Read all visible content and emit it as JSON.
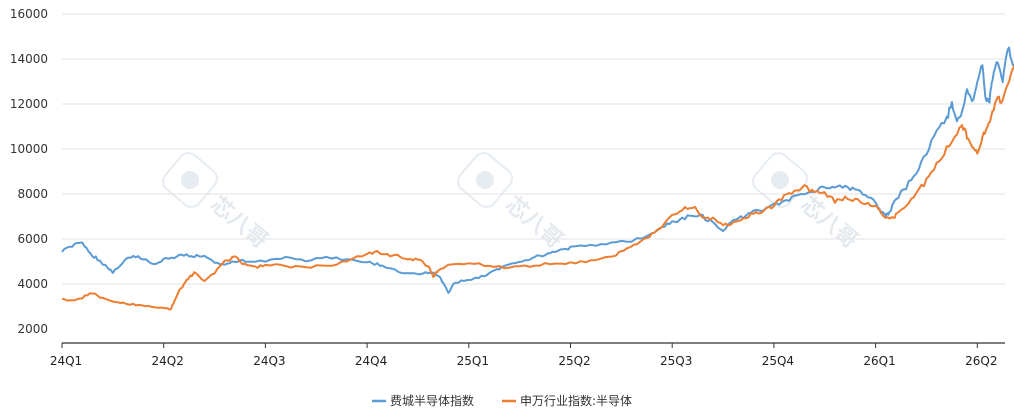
{
  "chart_data": {
    "type": "line",
    "title": "",
    "xlabel": "",
    "ylabel": "",
    "ylim": [
      2000,
      16000
    ],
    "yticks": [
      2000,
      4000,
      6000,
      8000,
      10000,
      12000,
      14000,
      16000
    ],
    "xticks": [
      "24Q1",
      "24Q2",
      "24Q3",
      "24Q4",
      "25Q1",
      "25Q2",
      "25Q3",
      "25Q4",
      "26Q1",
      "26Q2"
    ],
    "x_domain": [
      0,
      9.4
    ],
    "grid": "horizontal",
    "legend_position": "bottom-center",
    "series": [
      {
        "name": "费城半导体指数",
        "color": "#5b9bd5",
        "points": [
          [
            0.0,
            5500
          ],
          [
            0.1,
            5700
          ],
          [
            0.2,
            5800
          ],
          [
            0.28,
            5350
          ],
          [
            0.35,
            5100
          ],
          [
            0.45,
            4700
          ],
          [
            0.5,
            4500
          ],
          [
            0.6,
            5000
          ],
          [
            0.7,
            5250
          ],
          [
            0.8,
            5150
          ],
          [
            0.9,
            4900
          ],
          [
            1.0,
            5100
          ],
          [
            1.1,
            5200
          ],
          [
            1.2,
            5300
          ],
          [
            1.3,
            5250
          ],
          [
            1.4,
            5200
          ],
          [
            1.5,
            5000
          ],
          [
            1.6,
            4800
          ],
          [
            1.7,
            5000
          ],
          [
            1.8,
            5050
          ],
          [
            2.0,
            5000
          ],
          [
            2.2,
            5150
          ],
          [
            2.4,
            5000
          ],
          [
            2.6,
            5200
          ],
          [
            2.8,
            5100
          ],
          [
            3.0,
            4950
          ],
          [
            3.1,
            4900
          ],
          [
            3.2,
            4750
          ],
          [
            3.35,
            4500
          ],
          [
            3.5,
            4450
          ],
          [
            3.6,
            4500
          ],
          [
            3.7,
            4400
          ],
          [
            3.75,
            4050
          ],
          [
            3.8,
            3600
          ],
          [
            3.85,
            4000
          ],
          [
            3.95,
            4150
          ],
          [
            4.1,
            4250
          ],
          [
            4.2,
            4500
          ],
          [
            4.3,
            4700
          ],
          [
            4.4,
            4900
          ],
          [
            4.5,
            5000
          ],
          [
            4.6,
            5100
          ],
          [
            4.7,
            5250
          ],
          [
            4.8,
            5400
          ],
          [
            4.9,
            5500
          ],
          [
            5.0,
            5600
          ],
          [
            5.2,
            5700
          ],
          [
            5.4,
            5800
          ],
          [
            5.6,
            5900
          ],
          [
            5.8,
            6200
          ],
          [
            5.9,
            6500
          ],
          [
            6.0,
            6750
          ],
          [
            6.1,
            6900
          ],
          [
            6.2,
            7050
          ],
          [
            6.3,
            7000
          ],
          [
            6.4,
            6700
          ],
          [
            6.5,
            6400
          ],
          [
            6.6,
            6800
          ],
          [
            6.7,
            7000
          ],
          [
            6.8,
            7200
          ],
          [
            6.9,
            7300
          ],
          [
            7.0,
            7500
          ],
          [
            7.1,
            7650
          ],
          [
            7.2,
            7850
          ],
          [
            7.3,
            8000
          ],
          [
            7.4,
            8100
          ],
          [
            7.5,
            8300
          ],
          [
            7.6,
            8250
          ],
          [
            7.7,
            8350
          ],
          [
            7.8,
            8200
          ],
          [
            7.9,
            7900
          ],
          [
            8.0,
            7600
          ],
          [
            8.05,
            7200
          ],
          [
            8.1,
            7000
          ],
          [
            8.15,
            7300
          ],
          [
            8.2,
            7800
          ],
          [
            8.3,
            8300
          ],
          [
            8.4,
            9000
          ],
          [
            8.5,
            9800
          ],
          [
            8.6,
            10800
          ],
          [
            8.7,
            11300
          ],
          [
            8.75,
            12100
          ],
          [
            8.8,
            11200
          ],
          [
            8.85,
            11700
          ],
          [
            8.9,
            12600
          ],
          [
            8.95,
            12000
          ],
          [
            9.0,
            13000
          ],
          [
            9.05,
            13700
          ],
          [
            9.08,
            12300
          ],
          [
            9.12,
            12200
          ],
          [
            9.15,
            13000
          ],
          [
            9.2,
            14000
          ],
          [
            9.25,
            13000
          ],
          [
            9.3,
            14600
          ],
          [
            9.35,
            13600
          ],
          [
            9.4,
            13900
          ]
        ]
      },
      {
        "name": "申万行业指数:半导体",
        "color": "#ed7d31",
        "points": [
          [
            0.0,
            3300
          ],
          [
            0.1,
            3250
          ],
          [
            0.2,
            3400
          ],
          [
            0.3,
            3600
          ],
          [
            0.4,
            3350
          ],
          [
            0.5,
            3250
          ],
          [
            0.6,
            3150
          ],
          [
            0.7,
            3100
          ],
          [
            0.8,
            3050
          ],
          [
            0.9,
            3000
          ],
          [
            1.0,
            2950
          ],
          [
            1.07,
            2850
          ],
          [
            1.1,
            3200
          ],
          [
            1.15,
            3700
          ],
          [
            1.2,
            4000
          ],
          [
            1.25,
            4300
          ],
          [
            1.3,
            4500
          ],
          [
            1.4,
            4100
          ],
          [
            1.5,
            4500
          ],
          [
            1.6,
            5000
          ],
          [
            1.7,
            5200
          ],
          [
            1.8,
            4850
          ],
          [
            1.9,
            4750
          ],
          [
            2.0,
            4850
          ],
          [
            2.2,
            4800
          ],
          [
            2.4,
            4750
          ],
          [
            2.6,
            4800
          ],
          [
            2.8,
            5000
          ],
          [
            3.0,
            5350
          ],
          [
            3.1,
            5400
          ],
          [
            3.2,
            5300
          ],
          [
            3.3,
            5250
          ],
          [
            3.4,
            5100
          ],
          [
            3.5,
            5100
          ],
          [
            3.6,
            4800
          ],
          [
            3.65,
            4350
          ],
          [
            3.7,
            4600
          ],
          [
            3.8,
            4850
          ],
          [
            4.0,
            4950
          ],
          [
            4.2,
            4800
          ],
          [
            4.4,
            4700
          ],
          [
            4.6,
            4800
          ],
          [
            4.8,
            4900
          ],
          [
            5.0,
            4950
          ],
          [
            5.2,
            5000
          ],
          [
            5.4,
            5200
          ],
          [
            5.5,
            5400
          ],
          [
            5.6,
            5700
          ],
          [
            5.7,
            5900
          ],
          [
            5.8,
            6200
          ],
          [
            5.9,
            6600
          ],
          [
            6.0,
            7000
          ],
          [
            6.1,
            7300
          ],
          [
            6.2,
            7450
          ],
          [
            6.3,
            7000
          ],
          [
            6.4,
            6900
          ],
          [
            6.5,
            6600
          ],
          [
            6.6,
            6700
          ],
          [
            6.7,
            6900
          ],
          [
            6.8,
            7100
          ],
          [
            6.9,
            7300
          ],
          [
            7.0,
            7500
          ],
          [
            7.1,
            7900
          ],
          [
            7.2,
            8100
          ],
          [
            7.3,
            8300
          ],
          [
            7.4,
            8100
          ],
          [
            7.5,
            8000
          ],
          [
            7.6,
            7700
          ],
          [
            7.7,
            7800
          ],
          [
            7.8,
            7700
          ],
          [
            7.9,
            7600
          ],
          [
            8.0,
            7400
          ],
          [
            8.1,
            7000
          ],
          [
            8.15,
            6900
          ],
          [
            8.2,
            7050
          ],
          [
            8.3,
            7500
          ],
          [
            8.4,
            8000
          ],
          [
            8.5,
            8600
          ],
          [
            8.6,
            9300
          ],
          [
            8.7,
            10000
          ],
          [
            8.8,
            10700
          ],
          [
            8.85,
            11100
          ],
          [
            8.9,
            10500
          ],
          [
            8.95,
            10000
          ],
          [
            9.0,
            9800
          ],
          [
            9.05,
            10500
          ],
          [
            9.1,
            11000
          ],
          [
            9.15,
            11700
          ],
          [
            9.2,
            12200
          ],
          [
            9.25,
            12100
          ],
          [
            9.3,
            12900
          ],
          [
            9.35,
            13500
          ],
          [
            9.4,
            14300
          ]
        ]
      }
    ]
  },
  "watermark": {
    "text": "芯八哥",
    "icon": "bird-logo-icon"
  }
}
